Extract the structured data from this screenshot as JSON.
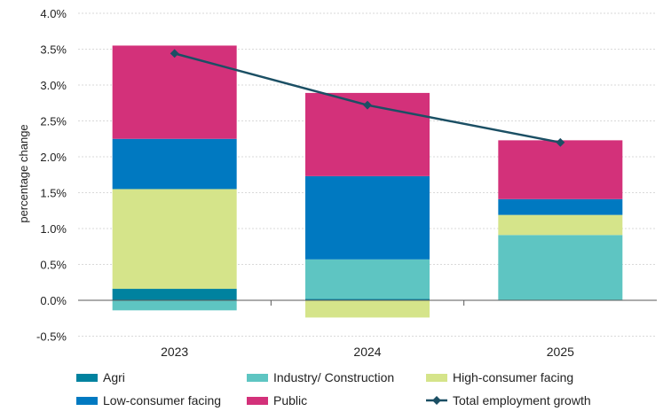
{
  "chart_data": {
    "type": "bar",
    "stacked": true,
    "categories": [
      "2023",
      "2024",
      "2025"
    ],
    "ylabel": "percentage change",
    "ylim": [
      -0.5,
      4.0
    ],
    "yticks": [
      "-0.5%",
      "0.0%",
      "0.5%",
      "1.0%",
      "1.5%",
      "2.0%",
      "2.5%",
      "3.0%",
      "3.5%",
      "4.0%"
    ],
    "grid": true,
    "legend_position": "bottom",
    "series": [
      {
        "name": "Agri",
        "color": "#00829F",
        "values": [
          0.16,
          0.02,
          0.0
        ]
      },
      {
        "name": "Industry/ Construction",
        "color": "#5EC5C2",
        "values": [
          -0.14,
          0.55,
          0.91
        ]
      },
      {
        "name": "High-consumer facing",
        "color": "#D5E48A",
        "values": [
          1.39,
          -0.24,
          0.28
        ]
      },
      {
        "name": "Low-consumer facing",
        "color": "#0079C1",
        "values": [
          0.7,
          1.16,
          0.22
        ]
      },
      {
        "name": "Public",
        "color": "#D3317A",
        "values": [
          1.3,
          1.16,
          0.82
        ]
      }
    ],
    "line": {
      "name": "Total employment growth",
      "color": "#1B4F64",
      "values": [
        3.44,
        2.72,
        2.2
      ]
    }
  }
}
